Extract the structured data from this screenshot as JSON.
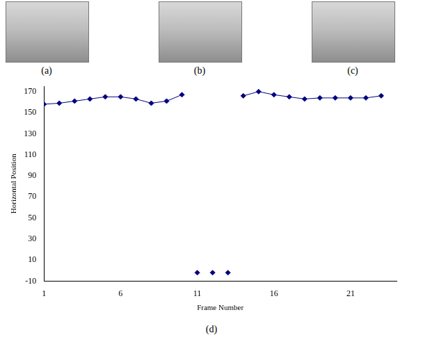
{
  "chart_data": {
    "type": "line",
    "x": [
      1,
      2,
      3,
      4,
      5,
      6,
      7,
      8,
      9,
      10,
      11,
      12,
      13,
      14,
      15,
      16,
      17,
      18,
      19,
      20,
      21,
      22,
      23
    ],
    "values": [
      158,
      159,
      161,
      163,
      165,
      165,
      163,
      159,
      161,
      167,
      -2,
      -2,
      -2,
      166,
      170,
      167,
      165,
      163,
      164,
      164,
      164,
      164,
      166
    ],
    "color": "#000080",
    "marker": "diamond",
    "x_label": "Frame Number",
    "y_label": "Horizontal Position",
    "xlim": [
      1,
      24
    ],
    "xticks": [
      1,
      6,
      11,
      16,
      21
    ],
    "ylim": [
      -10,
      175
    ],
    "yticks": [
      -10,
      10,
      30,
      50,
      70,
      90,
      110,
      130,
      150,
      170
    ],
    "grid": false
  },
  "figure": {
    "panel_labels": [
      "(a)",
      "(b)",
      "(c)"
    ],
    "chart_label": "(d)"
  }
}
